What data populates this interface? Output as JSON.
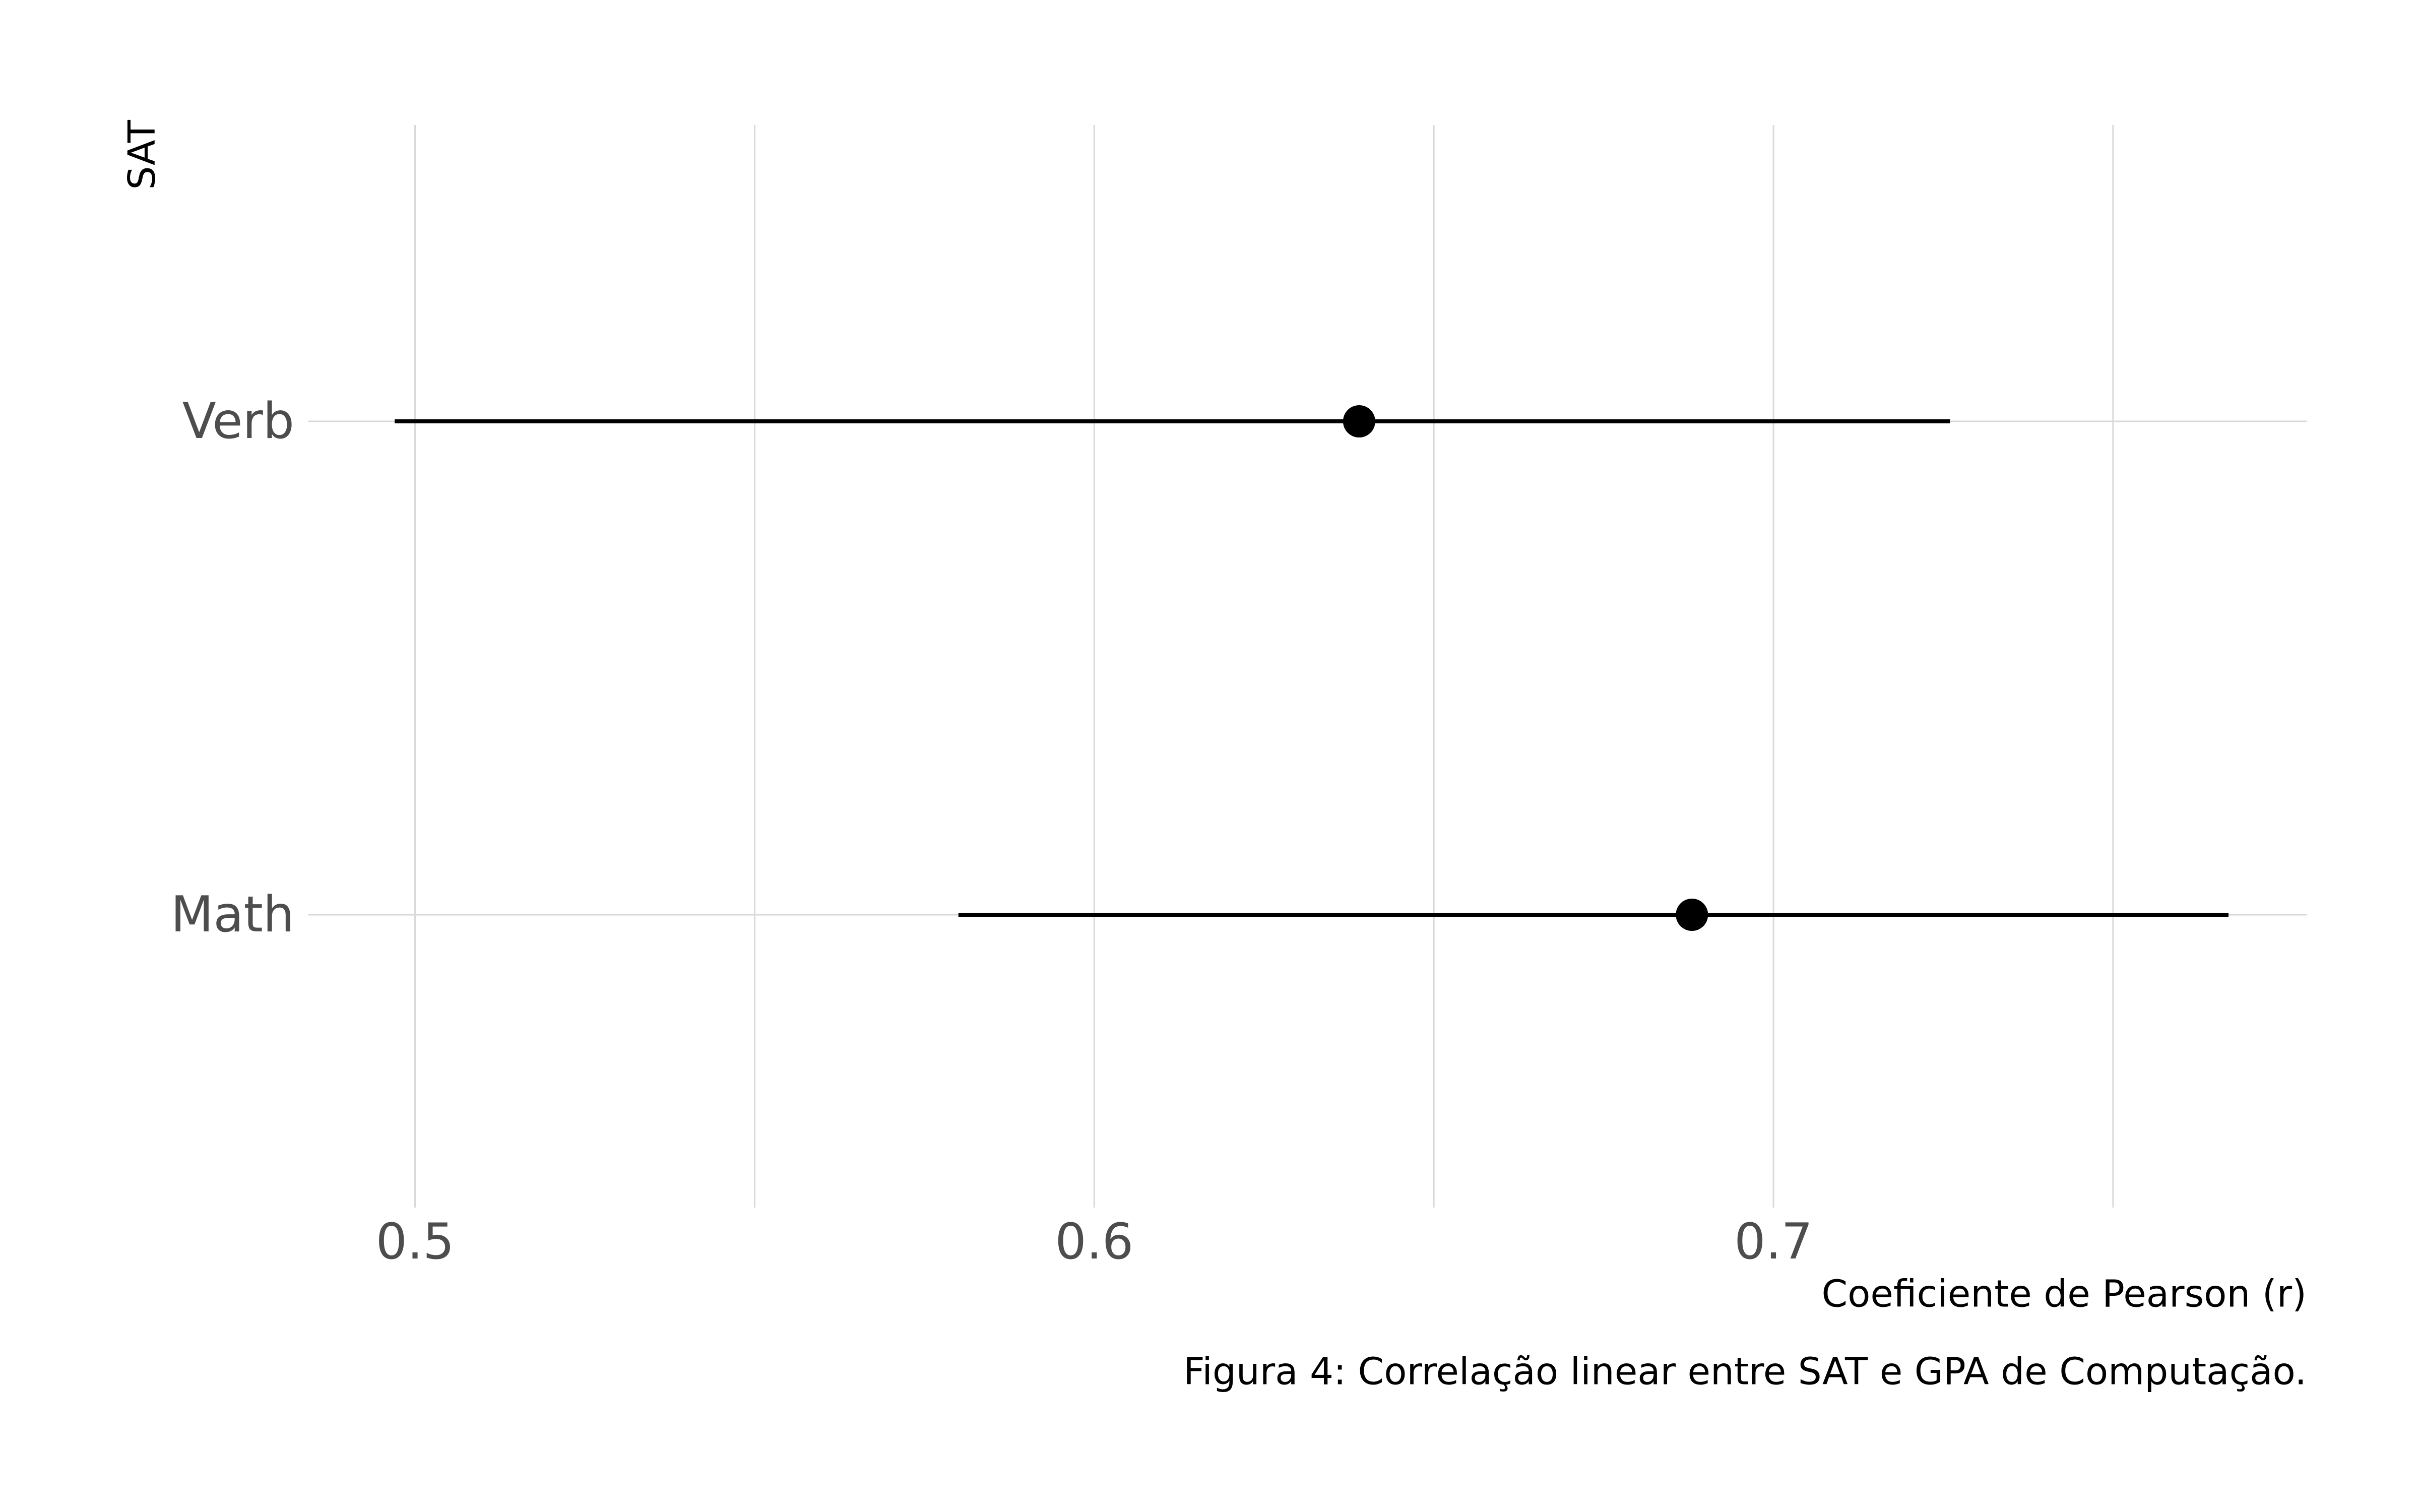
{
  "chart_data": {
    "type": "errorbar",
    "title": "",
    "xlabel": "Coeficiente de Pearson (r)",
    "ylabel": "SAT",
    "caption": "Figura 4: Correlação linear entre SAT e GPA de Computação.",
    "xlim": [
      0.4843,
      0.7785
    ],
    "x_ticks": [
      0.5,
      0.6,
      0.7
    ],
    "x_tick_labels": [
      "0.5",
      "0.6",
      "0.7"
    ],
    "x_minor_ticks": [
      0.55,
      0.65,
      0.75
    ],
    "categories": [
      "Math",
      "Verb"
    ],
    "series": [
      {
        "name": "r",
        "points": [
          {
            "category": "Verb",
            "estimate": 0.639,
            "lower": 0.497,
            "upper": 0.726
          },
          {
            "category": "Math",
            "estimate": 0.688,
            "lower": 0.58,
            "upper": 0.767
          }
        ]
      }
    ],
    "grid": true,
    "colors": {
      "point": "#000000",
      "grid": "#d9d9d9",
      "tick_label": "#4d4d4d"
    }
  }
}
